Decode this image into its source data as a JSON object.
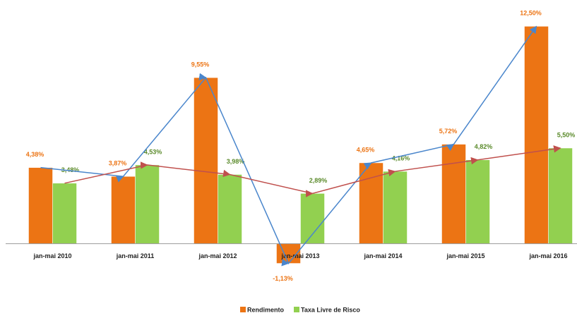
{
  "chart_data": {
    "type": "bar",
    "categories": [
      "jan-mai 2010",
      "jan-mai 2011",
      "jan-mai 2012",
      "jan-mai 2013",
      "jan-mai 2014",
      "jan-mai 2015",
      "jan-mai 2016"
    ],
    "series": [
      {
        "name": "Rendimento",
        "color": "#ec7414",
        "line_color": "#4a86cc",
        "values": [
          4.38,
          3.87,
          9.55,
          -1.13,
          4.65,
          5.72,
          12.5
        ],
        "value_labels": [
          "4,38%",
          "3,87%",
          "9,55%",
          "-1,13%",
          "4,65%",
          "5,72%",
          "12,50%"
        ]
      },
      {
        "name": "Taxa Livre de Risco",
        "color": "#92d050",
        "line_color": "#c0504d",
        "values": [
          3.48,
          4.53,
          3.98,
          2.89,
          4.16,
          4.82,
          5.5
        ],
        "value_labels": [
          "3,48%",
          "4,53%",
          "3,98%",
          "2,89%",
          "4,16%",
          "4,82%",
          "5,50%"
        ]
      }
    ],
    "ylim": [
      -2,
      13
    ],
    "legend": "bottom"
  }
}
